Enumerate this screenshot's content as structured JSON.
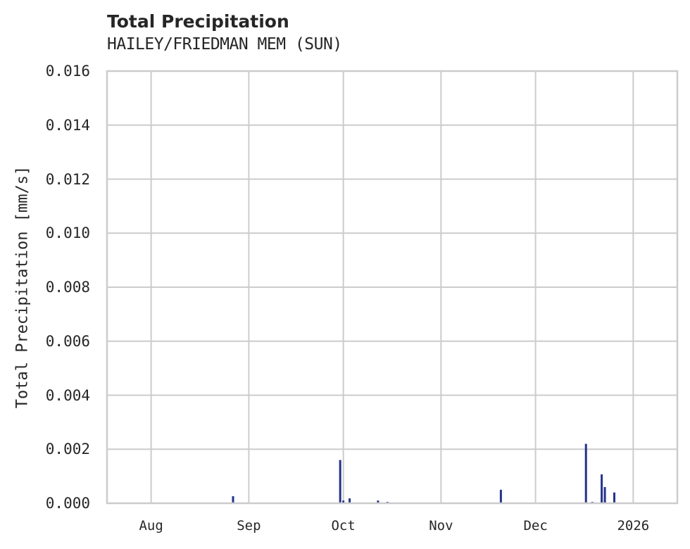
{
  "header": {
    "title": "Total Precipitation",
    "subtitle": "HAILEY/FRIEDMAN MEM (SUN)"
  },
  "axes": {
    "ylabel": "Total Precipitation [mm/s]",
    "yticks": [
      "0.000",
      "0.002",
      "0.004",
      "0.006",
      "0.008",
      "0.010",
      "0.012",
      "0.014",
      "0.016"
    ],
    "xticks": [
      "Aug",
      "Sep",
      "Oct",
      "Nov",
      "Dec",
      "2026"
    ]
  },
  "colors": {
    "series": "#23338c",
    "grid": "#cccccc",
    "text": "#262626"
  },
  "chart_data": {
    "type": "bar",
    "title": "Total Precipitation",
    "subtitle": "HAILEY/FRIEDMAN MEM (SUN)",
    "xlabel": "",
    "ylabel": "Total Precipitation [mm/s]",
    "ylim": [
      0,
      0.016
    ],
    "xlim": [
      "2025-07-18",
      "2026-01-15"
    ],
    "grid": true,
    "legend": null,
    "x_tick_labels": [
      "Aug",
      "Sep",
      "Oct",
      "Nov",
      "Dec",
      "2026"
    ],
    "y_tick_labels": [
      "0.000",
      "0.002",
      "0.004",
      "0.006",
      "0.008",
      "0.010",
      "0.012",
      "0.014",
      "0.016"
    ],
    "series": [
      {
        "name": "Total Precipitation",
        "x": [
          "2025-08-27",
          "2025-09-30",
          "2025-10-01",
          "2025-10-03",
          "2025-10-12",
          "2025-10-15",
          "2025-11-20",
          "2025-12-17",
          "2025-12-19",
          "2025-12-22",
          "2025-12-23",
          "2025-12-23",
          "2025-12-26"
        ],
        "values": [
          0.00026,
          0.0016,
          0.0001,
          0.00018,
          0.0001,
          5e-05,
          0.0005,
          0.0022,
          5e-05,
          0.00107,
          0.0006,
          0.0001,
          0.0004
        ]
      }
    ]
  }
}
